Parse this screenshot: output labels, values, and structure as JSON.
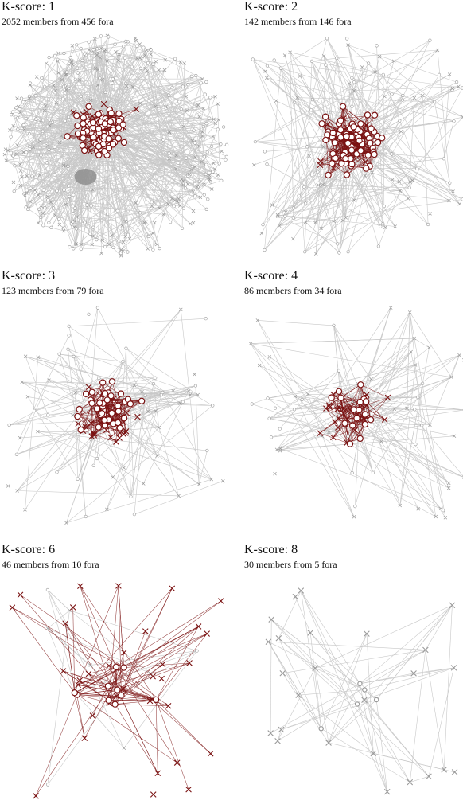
{
  "panels": [
    {
      "title": "K-score: 1",
      "subtitle": "2052 members from 456 fora",
      "seed": 11,
      "nodes_circle": 120,
      "nodes_x": 18,
      "peripheral": 380,
      "red_edges": 300,
      "gray_edges": 700,
      "style": "dense_ring"
    },
    {
      "title": "K-score: 2",
      "subtitle": "142 members from 146 fora",
      "seed": 22,
      "nodes_circle": 80,
      "nodes_x": 40,
      "peripheral": 120,
      "red_edges": 360,
      "gray_edges": 260,
      "style": "cloud"
    },
    {
      "title": "K-score: 3",
      "subtitle": "123 members from 79 fora",
      "seed": 33,
      "nodes_circle": 40,
      "nodes_x": 40,
      "peripheral": 70,
      "red_edges": 220,
      "gray_edges": 170,
      "style": "cloud"
    },
    {
      "title": "K-score: 4",
      "subtitle": "86 members from 34 fora",
      "seed": 44,
      "nodes_circle": 18,
      "nodes_x": 30,
      "peripheral": 60,
      "red_edges": 150,
      "gray_edges": 150,
      "style": "cloud"
    },
    {
      "title": "K-score: 6",
      "subtitle": "46 members from 10 fora",
      "seed": 55,
      "nodes_circle": 10,
      "nodes_x": 34,
      "peripheral": 8,
      "red_edges": 110,
      "gray_edges": 20,
      "style": "star"
    },
    {
      "title": "K-score: 8",
      "subtitle": "30 members from 5 fora",
      "seed": 66,
      "nodes_circle": 5,
      "nodes_x": 25,
      "peripheral": 0,
      "red_edges": 0,
      "gray_edges": 70,
      "style": "star_gray"
    }
  ],
  "colors": {
    "red": "#7a1212",
    "gray": "#9a9a9a",
    "light_gray": "#c8c8c8",
    "node_fill": "#ffffff",
    "text": "#111111"
  }
}
